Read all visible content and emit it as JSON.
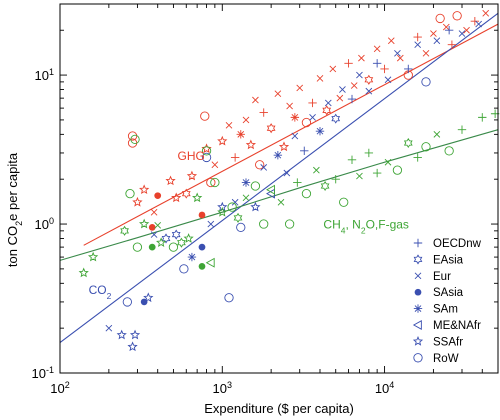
{
  "chart_data": {
    "type": "scatter",
    "xscale": "log",
    "yscale": "log",
    "xlim": [
      100,
      50000
    ],
    "ylim": [
      0.1,
      30
    ],
    "xlabel": "Expenditure ($ per capita)",
    "ylabel_main": "ton CO",
    "ylabel_sub": "2",
    "ylabel_rest": "e per capita",
    "xticks": [
      {
        "value": 100,
        "base": "10",
        "exp": "2"
      },
      {
        "value": 1000,
        "base": "10",
        "exp": "3"
      },
      {
        "value": 10000,
        "base": "10",
        "exp": "4"
      }
    ],
    "yticks": [
      {
        "value": 0.1,
        "base": "10",
        "exp": "-1"
      },
      {
        "value": 1,
        "base": "10",
        "exp": "0"
      },
      {
        "value": 10,
        "base": "10",
        "exp": "1"
      }
    ],
    "grid": false,
    "legend_position": "bottom-right",
    "colors": {
      "ghg": "#e8412c",
      "co2": "#3a4fb0",
      "other": "#3ea535"
    },
    "fit_lines": [
      {
        "series": "GHG",
        "color": "#e8412c",
        "points": [
          [
            140,
            0.72
          ],
          [
            50000,
            22
          ]
        ]
      },
      {
        "series": "CO2",
        "color": "#3a4fb0",
        "points": [
          [
            100,
            0.16
          ],
          [
            50000,
            26
          ]
        ]
      },
      {
        "series": "CH4_N2O_F",
        "color": "#3a8a4a",
        "points": [
          [
            100,
            0.57
          ],
          [
            300,
            0.81
          ],
          [
            1000,
            1.2
          ],
          [
            3000,
            1.75
          ],
          [
            10000,
            2.6
          ],
          [
            50000,
            4.3
          ]
        ]
      }
    ],
    "annotations": {
      "ghg": {
        "text": "GHG",
        "x": 530,
        "y": 2.7
      },
      "co2": {
        "main": "CO",
        "sub": "2",
        "x": 150,
        "y": 0.34
      },
      "other": {
        "parts": [
          {
            "text": "CH",
            "sub": false
          },
          {
            "text": "4",
            "sub": true
          },
          {
            "text": ", N",
            "sub": false
          },
          {
            "text": "2",
            "sub": true
          },
          {
            "text": "O,F-gas",
            "sub": false
          }
        ],
        "x": 4200,
        "y": 0.93
      }
    },
    "legend": [
      {
        "label": "OECDnw",
        "marker": "plus"
      },
      {
        "label": "EAsia",
        "marker": "hexstar"
      },
      {
        "label": "Eur",
        "marker": "x"
      },
      {
        "label": "SAsia",
        "marker": "dot"
      },
      {
        "label": "SAm",
        "marker": "asterisk"
      },
      {
        "label": "ME&NAfr",
        "marker": "triangle"
      },
      {
        "label": "SSAfr",
        "marker": "star"
      },
      {
        "label": "RoW",
        "marker": "circle"
      }
    ],
    "series": [
      {
        "name": "GHG",
        "color": "#e8412c",
        "points": [
          {
            "x": 280,
            "y": 3.9,
            "m": "circle"
          },
          {
            "x": 280,
            "y": 3.5,
            "m": "circle"
          },
          {
            "x": 300,
            "y": 1.4,
            "m": "star"
          },
          {
            "x": 330,
            "y": 1.7,
            "m": "star"
          },
          {
            "x": 380,
            "y": 1.2,
            "m": "x"
          },
          {
            "x": 400,
            "y": 1.55,
            "m": "dot"
          },
          {
            "x": 370,
            "y": 0.95,
            "m": "dot"
          },
          {
            "x": 480,
            "y": 1.95,
            "m": "star"
          },
          {
            "x": 520,
            "y": 1.5,
            "m": "star"
          },
          {
            "x": 600,
            "y": 1.6,
            "m": "hexstar"
          },
          {
            "x": 650,
            "y": 2.1,
            "m": "star"
          },
          {
            "x": 750,
            "y": 1.15,
            "m": "dot"
          },
          {
            "x": 780,
            "y": 5.3,
            "m": "circle"
          },
          {
            "x": 800,
            "y": 3.2,
            "m": "star"
          },
          {
            "x": 850,
            "y": 1.9,
            "m": "circle"
          },
          {
            "x": 900,
            "y": 2.5,
            "m": "x"
          },
          {
            "x": 1000,
            "y": 3.6,
            "m": "star"
          },
          {
            "x": 1100,
            "y": 4.6,
            "m": "x"
          },
          {
            "x": 1200,
            "y": 2.8,
            "m": "plus"
          },
          {
            "x": 1300,
            "y": 4.0,
            "m": "asterisk"
          },
          {
            "x": 1400,
            "y": 5.0,
            "m": "x"
          },
          {
            "x": 1500,
            "y": 3.4,
            "m": "star"
          },
          {
            "x": 1600,
            "y": 6.8,
            "m": "x"
          },
          {
            "x": 1700,
            "y": 2.5,
            "m": "circle"
          },
          {
            "x": 1800,
            "y": 5.6,
            "m": "plus"
          },
          {
            "x": 2000,
            "y": 4.4,
            "m": "hexstar"
          },
          {
            "x": 2200,
            "y": 7.5,
            "m": "x"
          },
          {
            "x": 2400,
            "y": 3.3,
            "m": "star"
          },
          {
            "x": 2600,
            "y": 6.2,
            "m": "x"
          },
          {
            "x": 2800,
            "y": 5.2,
            "m": "asterisk"
          },
          {
            "x": 3000,
            "y": 8.2,
            "m": "x"
          },
          {
            "x": 3300,
            "y": 4.8,
            "m": "circle"
          },
          {
            "x": 3600,
            "y": 6.5,
            "m": "plus"
          },
          {
            "x": 4000,
            "y": 9.5,
            "m": "x"
          },
          {
            "x": 4400,
            "y": 5.8,
            "m": "hexstar"
          },
          {
            "x": 4800,
            "y": 11,
            "m": "x"
          },
          {
            "x": 5300,
            "y": 7.0,
            "m": "x"
          },
          {
            "x": 6000,
            "y": 12,
            "m": "plus"
          },
          {
            "x": 6500,
            "y": 8.5,
            "m": "x"
          },
          {
            "x": 7200,
            "y": 13,
            "m": "x"
          },
          {
            "x": 8000,
            "y": 9.3,
            "m": "hexstar"
          },
          {
            "x": 9000,
            "y": 15,
            "m": "x"
          },
          {
            "x": 10000,
            "y": 11,
            "m": "plus"
          },
          {
            "x": 11000,
            "y": 17,
            "m": "x"
          },
          {
            "x": 12500,
            "y": 13,
            "m": "x"
          },
          {
            "x": 14000,
            "y": 10,
            "m": "circle"
          },
          {
            "x": 16000,
            "y": 18,
            "m": "plus"
          },
          {
            "x": 18000,
            "y": 14,
            "m": "x"
          },
          {
            "x": 20000,
            "y": 19,
            "m": "x"
          },
          {
            "x": 22000,
            "y": 24,
            "m": "circle"
          },
          {
            "x": 24000,
            "y": 21,
            "m": "x"
          },
          {
            "x": 26000,
            "y": 16,
            "m": "plus"
          },
          {
            "x": 28000,
            "y": 25,
            "m": "circle"
          },
          {
            "x": 32000,
            "y": 20,
            "m": "x"
          },
          {
            "x": 36000,
            "y": 23,
            "m": "plus"
          },
          {
            "x": 42000,
            "y": 26,
            "m": "x"
          }
        ]
      },
      {
        "name": "CO2",
        "color": "#3a4fb0",
        "points": [
          {
            "x": 240,
            "y": 0.18,
            "m": "star"
          },
          {
            "x": 280,
            "y": 0.15,
            "m": "star"
          },
          {
            "x": 290,
            "y": 0.18,
            "m": "star"
          },
          {
            "x": 200,
            "y": 0.2,
            "m": "x"
          },
          {
            "x": 260,
            "y": 0.3,
            "m": "circle"
          },
          {
            "x": 330,
            "y": 0.3,
            "m": "dot"
          },
          {
            "x": 350,
            "y": 0.32,
            "m": "star"
          },
          {
            "x": 380,
            "y": 0.85,
            "m": "x"
          },
          {
            "x": 450,
            "y": 0.8,
            "m": "hexstar"
          },
          {
            "x": 520,
            "y": 0.85,
            "m": "hexstar"
          },
          {
            "x": 580,
            "y": 0.5,
            "m": "circle"
          },
          {
            "x": 650,
            "y": 0.6,
            "m": "asterisk"
          },
          {
            "x": 750,
            "y": 0.7,
            "m": "dot"
          },
          {
            "x": 800,
            "y": 2.8,
            "m": "circle"
          },
          {
            "x": 850,
            "y": 1.0,
            "m": "x"
          },
          {
            "x": 1000,
            "y": 1.3,
            "m": "star"
          },
          {
            "x": 1100,
            "y": 0.32,
            "m": "circle"
          },
          {
            "x": 1200,
            "y": 1.4,
            "m": "x"
          },
          {
            "x": 1300,
            "y": 0.95,
            "m": "circle"
          },
          {
            "x": 1400,
            "y": 1.9,
            "m": "asterisk"
          },
          {
            "x": 1600,
            "y": 1.3,
            "m": "star"
          },
          {
            "x": 1800,
            "y": 2.4,
            "m": "x"
          },
          {
            "x": 2000,
            "y": 1.6,
            "m": "triangle"
          },
          {
            "x": 2200,
            "y": 2.9,
            "m": "asterisk"
          },
          {
            "x": 2500,
            "y": 2.2,
            "m": "x"
          },
          {
            "x": 2800,
            "y": 3.9,
            "m": "x"
          },
          {
            "x": 3200,
            "y": 3.1,
            "m": "plus"
          },
          {
            "x": 3600,
            "y": 5.2,
            "m": "x"
          },
          {
            "x": 4000,
            "y": 4.2,
            "m": "asterisk"
          },
          {
            "x": 4500,
            "y": 6.5,
            "m": "x"
          },
          {
            "x": 5000,
            "y": 5.1,
            "m": "hexstar"
          },
          {
            "x": 5500,
            "y": 8.0,
            "m": "x"
          },
          {
            "x": 6300,
            "y": 6.9,
            "m": "plus"
          },
          {
            "x": 7000,
            "y": 10,
            "m": "x"
          },
          {
            "x": 8000,
            "y": 7.8,
            "m": "x"
          },
          {
            "x": 9000,
            "y": 12,
            "m": "plus"
          },
          {
            "x": 10500,
            "y": 9.3,
            "m": "x"
          },
          {
            "x": 12000,
            "y": 14,
            "m": "x"
          },
          {
            "x": 14000,
            "y": 11,
            "m": "plus"
          },
          {
            "x": 16000,
            "y": 16,
            "m": "x"
          },
          {
            "x": 18000,
            "y": 9.0,
            "m": "circle"
          },
          {
            "x": 21000,
            "y": 17,
            "m": "x"
          },
          {
            "x": 25000,
            "y": 20,
            "m": "plus"
          },
          {
            "x": 30000,
            "y": 19,
            "m": "x"
          },
          {
            "x": 38000,
            "y": 22,
            "m": "x"
          }
        ]
      },
      {
        "name": "CH4_N2O_F",
        "color": "#3ea535",
        "points": [
          {
            "x": 140,
            "y": 0.47,
            "m": "star"
          },
          {
            "x": 160,
            "y": 0.6,
            "m": "star"
          },
          {
            "x": 250,
            "y": 0.9,
            "m": "hexstar"
          },
          {
            "x": 270,
            "y": 1.6,
            "m": "circle"
          },
          {
            "x": 290,
            "y": 3.7,
            "m": "circle"
          },
          {
            "x": 300,
            "y": 0.7,
            "m": "circle"
          },
          {
            "x": 330,
            "y": 1.0,
            "m": "star"
          },
          {
            "x": 370,
            "y": 0.7,
            "m": "dot"
          },
          {
            "x": 400,
            "y": 0.98,
            "m": "x"
          },
          {
            "x": 420,
            "y": 0.75,
            "m": "star"
          },
          {
            "x": 500,
            "y": 0.7,
            "m": "circle"
          },
          {
            "x": 560,
            "y": 0.75,
            "m": "hexstar"
          },
          {
            "x": 620,
            "y": 0.8,
            "m": "star"
          },
          {
            "x": 700,
            "y": 1.5,
            "m": "star"
          },
          {
            "x": 750,
            "y": 0.52,
            "m": "dot"
          },
          {
            "x": 800,
            "y": 3.1,
            "m": "circle"
          },
          {
            "x": 850,
            "y": 0.55,
            "m": "triangle"
          },
          {
            "x": 900,
            "y": 1.9,
            "m": "circle"
          },
          {
            "x": 1000,
            "y": 1.2,
            "m": "star"
          },
          {
            "x": 1150,
            "y": 1.3,
            "m": "circle"
          },
          {
            "x": 1250,
            "y": 1.1,
            "m": "hexstar"
          },
          {
            "x": 1400,
            "y": 1.5,
            "m": "x"
          },
          {
            "x": 1600,
            "y": 1.8,
            "m": "circle"
          },
          {
            "x": 1800,
            "y": 1.0,
            "m": "circle"
          },
          {
            "x": 2000,
            "y": 1.7,
            "m": "triangle"
          },
          {
            "x": 2300,
            "y": 1.4,
            "m": "x"
          },
          {
            "x": 2600,
            "y": 1.0,
            "m": "circle"
          },
          {
            "x": 2900,
            "y": 1.9,
            "m": "plus"
          },
          {
            "x": 3300,
            "y": 1.6,
            "m": "circle"
          },
          {
            "x": 3800,
            "y": 2.3,
            "m": "x"
          },
          {
            "x": 4300,
            "y": 1.8,
            "m": "hexstar"
          },
          {
            "x": 5000,
            "y": 2.0,
            "m": "plus"
          },
          {
            "x": 5600,
            "y": 1.4,
            "m": "circle"
          },
          {
            "x": 6300,
            "y": 2.7,
            "m": "plus"
          },
          {
            "x": 7000,
            "y": 2.1,
            "m": "x"
          },
          {
            "x": 8000,
            "y": 3.0,
            "m": "plus"
          },
          {
            "x": 9000,
            "y": 2.2,
            "m": "plus"
          },
          {
            "x": 10500,
            "y": 2.6,
            "m": "x"
          },
          {
            "x": 12000,
            "y": 2.3,
            "m": "circle"
          },
          {
            "x": 14000,
            "y": 3.5,
            "m": "hexstar"
          },
          {
            "x": 16000,
            "y": 2.8,
            "m": "plus"
          },
          {
            "x": 18000,
            "y": 3.3,
            "m": "circle"
          },
          {
            "x": 21000,
            "y": 4.0,
            "m": "x"
          },
          {
            "x": 25000,
            "y": 3.1,
            "m": "circle"
          },
          {
            "x": 30000,
            "y": 4.3,
            "m": "plus"
          },
          {
            "x": 40000,
            "y": 5.2,
            "m": "plus"
          },
          {
            "x": 48000,
            "y": 5.5,
            "m": "plus"
          }
        ]
      }
    ]
  }
}
